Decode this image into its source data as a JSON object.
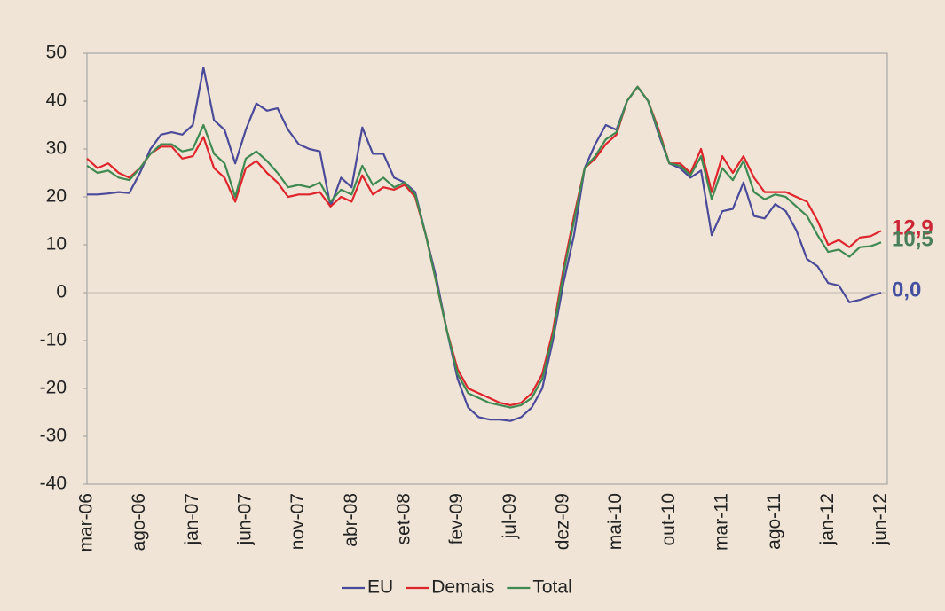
{
  "chart_data": {
    "type": "line",
    "categories": [
      "mar-06",
      null,
      null,
      null,
      null,
      "ago-06",
      null,
      null,
      null,
      null,
      "jan-07",
      null,
      null,
      null,
      null,
      "jun-07",
      null,
      null,
      null,
      null,
      "nov-07",
      null,
      null,
      null,
      null,
      "abr-08",
      null,
      null,
      null,
      null,
      "set-08",
      null,
      null,
      null,
      null,
      "fev-09",
      null,
      null,
      null,
      null,
      "jul-09",
      null,
      null,
      null,
      null,
      "dez-09",
      null,
      null,
      null,
      null,
      "mai-10",
      null,
      null,
      null,
      null,
      "out-10",
      null,
      null,
      null,
      null,
      "mar-11",
      null,
      null,
      null,
      null,
      "ago-11",
      null,
      null,
      null,
      null,
      "jan-12",
      null,
      null,
      null,
      null,
      "jun-12"
    ],
    "series": [
      {
        "name": "EU",
        "color": "#4b4a9a",
        "label_color": "#4550a0",
        "values": [
          20.5,
          20.5,
          20.7,
          21,
          20.8,
          25,
          30,
          33,
          33.5,
          33,
          35,
          47,
          36,
          34,
          27,
          34,
          39.5,
          38,
          38.5,
          34,
          31,
          30,
          29.5,
          18,
          24,
          22,
          34.5,
          29,
          29,
          24,
          23,
          21,
          12,
          3,
          -8,
          -18,
          -24,
          -26,
          -26.5,
          -26.5,
          -26.8,
          -26,
          -24,
          -20,
          -10,
          2,
          12,
          26,
          31,
          35,
          34,
          40,
          43,
          40,
          33,
          27,
          26,
          24,
          25.5,
          12,
          17,
          17.5,
          23,
          16,
          15.5,
          18.5,
          17,
          13,
          7,
          5.5,
          2,
          1.5,
          -2,
          -1.5,
          -0.7,
          0.0
        ],
        "value_labels": [
          null,
          null,
          null,
          null,
          null,
          null,
          null,
          null,
          null,
          null,
          null,
          null,
          null,
          null,
          null,
          null,
          null,
          null,
          null,
          null,
          null,
          null,
          null,
          null,
          null,
          null,
          null,
          null,
          null,
          null,
          null,
          null,
          null,
          null,
          null,
          null,
          null,
          null,
          null,
          null,
          null,
          null,
          null,
          null,
          null,
          null,
          null,
          null,
          null,
          null,
          null,
          null,
          null,
          null,
          null,
          null,
          null,
          null,
          null,
          null,
          null,
          null,
          null,
          null,
          null,
          null,
          null,
          null,
          null,
          null,
          null,
          null,
          null,
          null,
          null,
          "0,0"
        ]
      },
      {
        "name": "Demais",
        "color": "#e0242c",
        "label_color": "#cc2637",
        "values": [
          28,
          26,
          27,
          25,
          24,
          26,
          29,
          30.5,
          30.5,
          28,
          28.5,
          32.5,
          26,
          24,
          19,
          26,
          27.5,
          25,
          23,
          20,
          20.5,
          20.5,
          21,
          18,
          20,
          19,
          24.5,
          20.5,
          22,
          21.5,
          22.5,
          20,
          12,
          2,
          -8,
          -16,
          -20,
          -21,
          -22,
          -23,
          -23.5,
          -23,
          -21,
          -17,
          -8,
          5,
          16,
          26,
          28,
          31,
          33,
          40,
          43,
          40,
          34,
          27,
          27,
          25,
          30,
          21,
          28.5,
          25,
          28.5,
          24,
          21,
          21,
          21,
          20,
          19,
          15,
          10,
          11,
          9.5,
          11.5,
          11.8,
          12.9
        ],
        "value_labels": [
          null,
          null,
          null,
          null,
          null,
          null,
          null,
          null,
          null,
          null,
          null,
          null,
          null,
          null,
          null,
          null,
          null,
          null,
          null,
          null,
          null,
          null,
          null,
          null,
          null,
          null,
          null,
          null,
          null,
          null,
          null,
          null,
          null,
          null,
          null,
          null,
          null,
          null,
          null,
          null,
          null,
          null,
          null,
          null,
          null,
          null,
          null,
          null,
          null,
          null,
          null,
          null,
          null,
          null,
          null,
          null,
          null,
          null,
          null,
          null,
          null,
          null,
          null,
          null,
          null,
          null,
          null,
          null,
          null,
          null,
          null,
          null,
          null,
          null,
          null,
          "12,9"
        ]
      },
      {
        "name": "Total",
        "color": "#3f8a52",
        "label_color": "#4a7f5a",
        "values": [
          26.5,
          25,
          25.5,
          24,
          23.5,
          26,
          29,
          31,
          31,
          29.5,
          30,
          35,
          29,
          27,
          20,
          28,
          29.5,
          27.5,
          25,
          22,
          22.5,
          22,
          23,
          19,
          21.5,
          20.5,
          26.5,
          22.5,
          24,
          22,
          23,
          20.5,
          12,
          2,
          -8,
          -17,
          -21,
          -22,
          -23,
          -23.5,
          -24,
          -23.5,
          -22,
          -18,
          -9,
          4,
          15,
          26,
          28.5,
          32,
          33.5,
          40,
          43,
          40,
          33.5,
          27,
          26.5,
          24.5,
          28.5,
          19.5,
          26,
          23.5,
          27.5,
          21,
          19.5,
          20.5,
          20,
          18,
          16,
          12,
          8.5,
          9,
          7.5,
          9.5,
          9.7,
          10.5
        ],
        "value_labels": [
          null,
          null,
          null,
          null,
          null,
          null,
          null,
          null,
          null,
          null,
          null,
          null,
          null,
          null,
          null,
          null,
          null,
          null,
          null,
          null,
          null,
          null,
          null,
          null,
          null,
          null,
          null,
          null,
          null,
          null,
          null,
          null,
          null,
          null,
          null,
          null,
          null,
          null,
          null,
          null,
          null,
          null,
          null,
          null,
          null,
          null,
          null,
          null,
          null,
          null,
          null,
          null,
          null,
          null,
          null,
          null,
          null,
          null,
          null,
          null,
          null,
          null,
          null,
          null,
          null,
          null,
          null,
          null,
          null,
          null,
          null,
          null,
          null,
          null,
          null,
          "10,5"
        ]
      }
    ],
    "ylim": [
      -40,
      50
    ],
    "yticks": [
      -40,
      -30,
      -20,
      -10,
      0,
      10,
      20,
      30,
      40,
      50
    ],
    "grid": false,
    "legend": "bottom"
  }
}
